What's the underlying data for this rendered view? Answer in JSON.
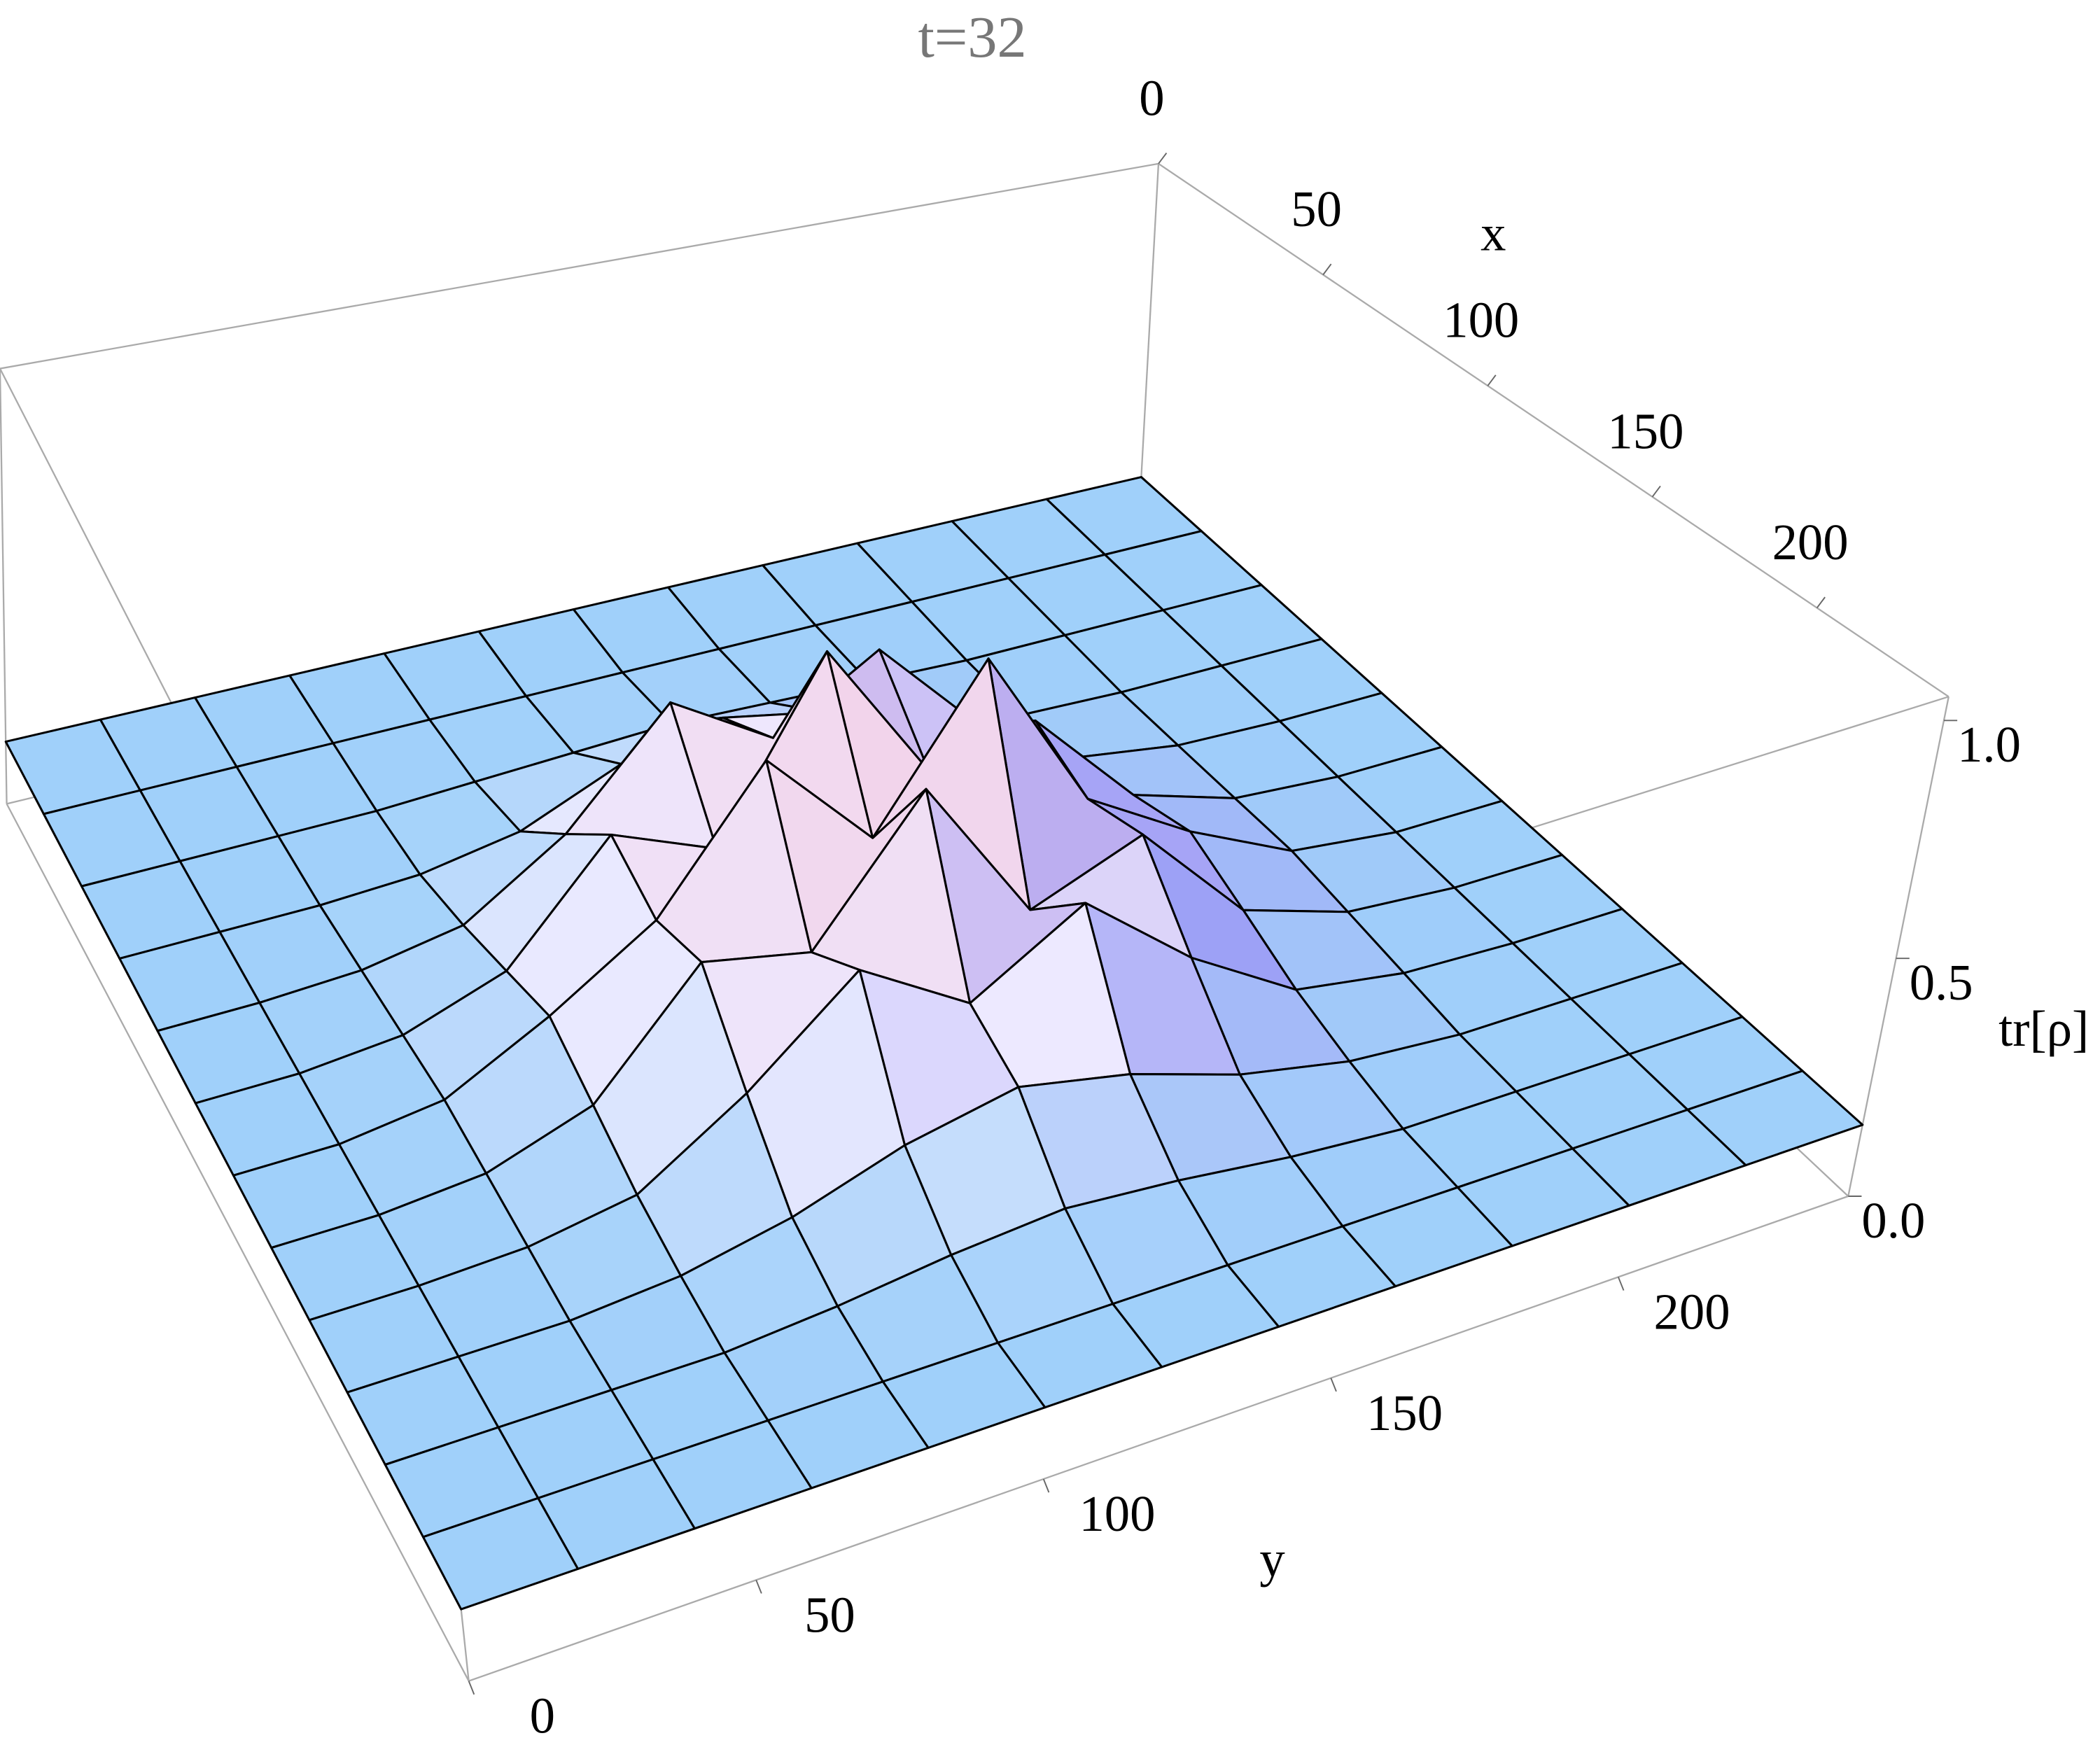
{
  "chart_data": {
    "type": "surface",
    "title": "t=32",
    "xlabel": "x",
    "ylabel": "y",
    "zlabel": "tr[ρ]",
    "x": [
      0,
      20,
      40,
      60,
      80,
      100,
      120,
      140,
      160,
      180,
      200,
      220,
      240
    ],
    "y": [
      0,
      20,
      40,
      60,
      80,
      100,
      120,
      140,
      160,
      180,
      200,
      220,
      240
    ],
    "z": [
      [
        0.15,
        0.15,
        0.15,
        0.15,
        0.15,
        0.15,
        0.15,
        0.15,
        0.15,
        0.15,
        0.15,
        0.15,
        0.15
      ],
      [
        0.15,
        0.15,
        0.15,
        0.15,
        0.15,
        0.15,
        0.15,
        0.15,
        0.15,
        0.15,
        0.15,
        0.15,
        0.15
      ],
      [
        0.15,
        0.15,
        0.15,
        0.15,
        0.16,
        0.17,
        0.18,
        0.17,
        0.16,
        0.15,
        0.15,
        0.15,
        0.15
      ],
      [
        0.15,
        0.15,
        0.15,
        0.16,
        0.2,
        0.3,
        0.35,
        0.3,
        0.2,
        0.16,
        0.15,
        0.15,
        0.15
      ],
      [
        0.15,
        0.15,
        0.16,
        0.2,
        0.35,
        0.6,
        0.45,
        0.6,
        0.35,
        0.2,
        0.16,
        0.15,
        0.15
      ],
      [
        0.15,
        0.15,
        0.17,
        0.25,
        0.5,
        0.4,
        0.8,
        0.45,
        0.5,
        0.25,
        0.17,
        0.15,
        0.15
      ],
      [
        0.15,
        0.15,
        0.18,
        0.3,
        0.45,
        0.75,
        0.5,
        0.85,
        0.45,
        0.3,
        0.18,
        0.15,
        0.15
      ],
      [
        0.15,
        0.15,
        0.17,
        0.25,
        0.5,
        0.45,
        0.75,
        0.4,
        0.5,
        0.25,
        0.17,
        0.15,
        0.15
      ],
      [
        0.15,
        0.15,
        0.16,
        0.2,
        0.35,
        0.55,
        0.4,
        0.55,
        0.35,
        0.2,
        0.16,
        0.15,
        0.15
      ],
      [
        0.15,
        0.15,
        0.15,
        0.17,
        0.22,
        0.3,
        0.35,
        0.3,
        0.22,
        0.17,
        0.15,
        0.15,
        0.15
      ],
      [
        0.15,
        0.15,
        0.15,
        0.15,
        0.17,
        0.2,
        0.22,
        0.2,
        0.17,
        0.15,
        0.15,
        0.15,
        0.15
      ],
      [
        0.15,
        0.15,
        0.15,
        0.15,
        0.15,
        0.15,
        0.15,
        0.15,
        0.15,
        0.15,
        0.15,
        0.15,
        0.15
      ],
      [
        0.15,
        0.15,
        0.15,
        0.15,
        0.15,
        0.15,
        0.15,
        0.15,
        0.15,
        0.15,
        0.15,
        0.15,
        0.15
      ]
    ],
    "xlim": [
      0,
      240
    ],
    "ylim": [
      0,
      240
    ],
    "zlim": [
      0,
      1.05
    ],
    "xticks": [
      0,
      50,
      100,
      150,
      200
    ],
    "yticks": [
      0,
      50,
      100,
      150,
      200
    ],
    "zticks": [
      {
        "value": 0,
        "label": "0.0"
      },
      {
        "value": 0.5,
        "label": "0.5"
      },
      {
        "value": 1,
        "label": "1.0"
      }
    ]
  }
}
